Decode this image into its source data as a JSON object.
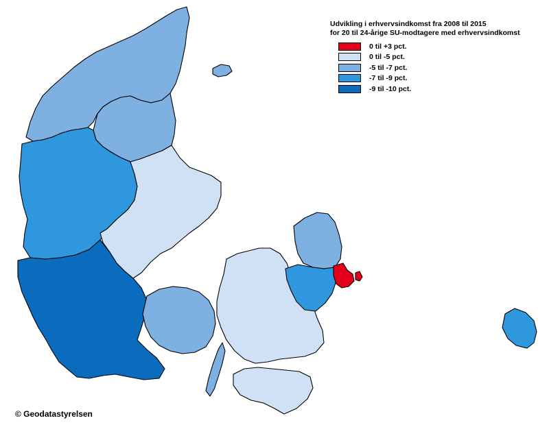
{
  "legend": {
    "title_line1": "Udvikling i erhvervsindkomst fra 2008 til 2015",
    "title_line2": "for 20 til 24-årige SU-modtagere med erhvervsindkomst",
    "items": [
      {
        "label": "0 til +3 pct.",
        "color": "#e3001b"
      },
      {
        "label": "0 til -5 pct.",
        "color": "#d1e1f5"
      },
      {
        "label": "-5 til -7 pct.",
        "color": "#7fb0e2"
      },
      {
        "label": "-7 til -9 pct.",
        "color": "#2f97dd"
      },
      {
        "label": "-9 til -10 pct.",
        "color": "#0b6cbd"
      }
    ]
  },
  "regions": [
    {
      "name": "nordjylland-nord",
      "class": 2
    },
    {
      "name": "nordjylland-east",
      "class": 2
    },
    {
      "name": "laeso",
      "class": 2
    },
    {
      "name": "viborg-region",
      "class": 3
    },
    {
      "name": "midtjylland-east",
      "class": 1
    },
    {
      "name": "syddanmark",
      "class": 4
    },
    {
      "name": "fyn",
      "class": 2
    },
    {
      "name": "langeland",
      "class": 2
    },
    {
      "name": "sjaelland",
      "class": 1
    },
    {
      "name": "lolland-falster",
      "class": 1
    },
    {
      "name": "nordsjaelland",
      "class": 2
    },
    {
      "name": "hovedstaden-west",
      "class": 3
    },
    {
      "name": "koebenhavn",
      "class": 0
    },
    {
      "name": "bornholm",
      "class": 3
    }
  ],
  "copyright": "© Geodatastyrelsen"
}
